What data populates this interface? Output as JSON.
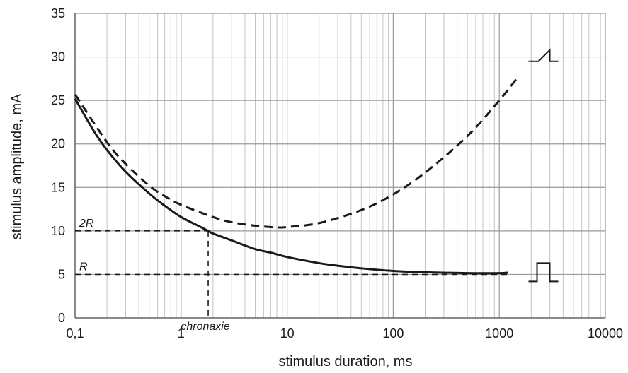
{
  "chart_data": {
    "type": "line",
    "xscale": "log",
    "xlim": [
      0.1,
      10000
    ],
    "ylim": [
      0,
      35
    ],
    "xlabel": "stimulus duration, ms",
    "ylabel": "stimulus amplitude, mA",
    "xticks": [
      {
        "v": 0.1,
        "label": "0,1"
      },
      {
        "v": 1,
        "label": "1"
      },
      {
        "v": 10,
        "label": "10"
      },
      {
        "v": 100,
        "label": "100"
      },
      {
        "v": 1000,
        "label": "1000"
      },
      {
        "v": 10000,
        "label": "10000"
      }
    ],
    "yticks": [
      0,
      5,
      10,
      15,
      20,
      25,
      30,
      35
    ],
    "grid": true,
    "series": [
      {
        "style": "solid",
        "x": [
          0.1,
          0.15,
          0.2,
          0.3,
          0.5,
          0.7,
          1,
          1.5,
          1.8,
          2,
          3,
          5,
          7,
          10,
          20,
          30,
          50,
          100,
          200,
          500,
          1000,
          1200
        ],
        "y": [
          25.2,
          21.5,
          19.3,
          16.8,
          14.3,
          12.9,
          11.6,
          10.5,
          10.0,
          9.7,
          8.9,
          7.9,
          7.5,
          7.0,
          6.3,
          6.0,
          5.7,
          5.4,
          5.25,
          5.15,
          5.15,
          5.2
        ]
      },
      {
        "style": "dashed",
        "x": [
          0.1,
          0.2,
          0.3,
          0.5,
          0.7,
          1,
          2,
          3,
          5,
          8,
          10,
          20,
          50,
          100,
          200,
          500,
          1000,
          1500
        ],
        "y": [
          25.7,
          20.2,
          17.7,
          15.2,
          14.0,
          13.0,
          11.6,
          11.0,
          10.6,
          10.4,
          10.45,
          10.9,
          12.4,
          14.2,
          16.7,
          20.9,
          25.0,
          27.7
        ]
      }
    ],
    "reference_lines": [
      {
        "label": "2R",
        "y": 10,
        "x_end": 1.8
      },
      {
        "label": "R",
        "y": 5,
        "x_end": 1200
      }
    ],
    "annotations": [
      {
        "text": "chronaxie",
        "x": 1.8
      }
    ],
    "pulse_icons": [
      {
        "shape": "ramp",
        "x": 2200,
        "y": 29.5
      },
      {
        "shape": "rectangular",
        "x": 2200,
        "y": 5
      }
    ]
  }
}
